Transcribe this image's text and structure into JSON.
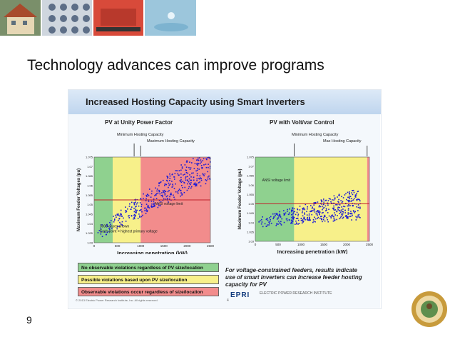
{
  "slide": {
    "title": "Technology advances can improve programs",
    "number": "9"
  },
  "figure": {
    "title": "Increased Hosting Capacity using Smart Inverters",
    "left_chart": {
      "subtitle": "PV at Unity Power Factor",
      "annotations": [
        "Minimum Hosting Capacity",
        "Maximum Hosting Capacity",
        "ANSI voltage limit",
        "5000 cases shown",
        "Each point = highest primary voltage"
      ],
      "ylabel": "Maximum Feeder Voltages (pu)",
      "xlabel": "Increasing penetration (kW)"
    },
    "right_chart": {
      "subtitle": "PV with Volt/var Control",
      "annotations": [
        "Minimum Hosting Capacity",
        "Max Hosting Capacity",
        "ANSI voltage limit"
      ],
      "ylabel": "Maximum Feeder Voltage (pu)",
      "xlabel": "Increasing penetration (kW)"
    },
    "legend": [
      {
        "text": "No observable violations regardless of PV size/location",
        "color": "#8fd18f"
      },
      {
        "text": "Possible violations based upon PV size/location",
        "color": "#f7f08a"
      },
      {
        "text": "Observable violations occur regardless of size/location",
        "color": "#f28c8c"
      }
    ],
    "note": "For voltage-constrained feeders, results indicate use of smart inverters can increase feeder hosting capacity for PV",
    "logo": "EPRI",
    "logo_text": "ELECTRIC POWER RESEARCH INSTITUTE",
    "copyright": "© 2013 Electric Power Research Institute, Inc. All rights reserved.",
    "page": "4"
  },
  "chart_data": [
    {
      "type": "scatter",
      "title": "PV at Unity Power Factor",
      "xlabel": "Increasing penetration (kW)",
      "ylabel": "Maximum Feeder Voltages (pu)",
      "xlim": [
        0,
        2500
      ],
      "ylim": [
        1.025,
        1.075
      ],
      "x_ticks": [
        "0",
        "500",
        "1000",
        "1500",
        "2000",
        "2500"
      ],
      "y_ticks": [
        "1.03",
        "1.035",
        "1.04",
        "1.045",
        "1.05",
        "1.055",
        "1.06",
        "1.065",
        "1.07",
        "1.075"
      ],
      "regions": [
        {
          "x": [
            0,
            400
          ],
          "color": "#8fd18f"
        },
        {
          "x": [
            400,
            1000
          ],
          "color": "#f7f08a"
        },
        {
          "x": [
            1000,
            2500
          ],
          "color": "#f28c8c"
        }
      ],
      "limit_y": 1.05,
      "trend": {
        "x0": 50,
        "y0": 1.03,
        "x1": 2500,
        "y1": 1.072,
        "spread": 0.008
      }
    },
    {
      "type": "scatter",
      "title": "PV with Volt/var Control",
      "xlabel": "Increasing penetration (kW)",
      "ylabel": "Maximum Feeder Voltage (pu)",
      "xlim": [
        0,
        2500
      ],
      "ylim": [
        1.03,
        1.075
      ],
      "x_ticks": [
        "0",
        "500",
        "1000",
        "1500",
        "2000",
        "2500"
      ],
      "y_ticks": [
        "1.03",
        "1.035",
        "1.04",
        "1.045",
        "1.05",
        "1.055",
        "1.06",
        "1.065",
        "1.07",
        "1.075"
      ],
      "regions": [
        {
          "x": [
            0,
            850
          ],
          "color": "#8fd18f"
        },
        {
          "x": [
            850,
            2450
          ],
          "color": "#f7f08a"
        },
        {
          "x": [
            2450,
            2500
          ],
          "color": "#f28c8c"
        }
      ],
      "limit_y": 1.05,
      "trend": {
        "x0": 50,
        "y0": 1.04,
        "x1": 2300,
        "y1": 1.05,
        "spread": 0.006
      }
    }
  ]
}
